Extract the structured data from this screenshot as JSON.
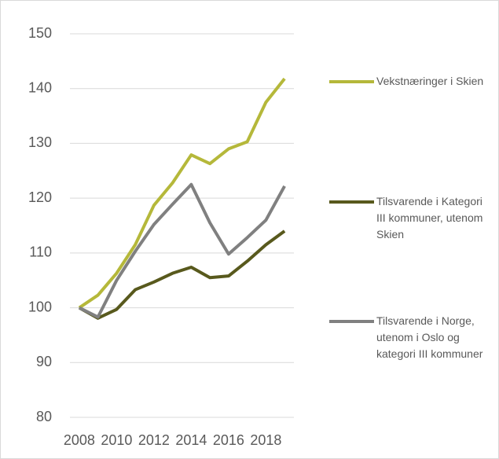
{
  "chart_data": {
    "type": "line",
    "x": [
      2008,
      2009,
      2010,
      2011,
      2012,
      2013,
      2014,
      2015,
      2016,
      2017,
      2018,
      2019
    ],
    "xlim": [
      2007.5,
      2019.5
    ],
    "xticks": [
      2008,
      2010,
      2012,
      2014,
      2016,
      2018
    ],
    "ylim": [
      80,
      150
    ],
    "yticks": [
      80,
      90,
      100,
      110,
      120,
      130,
      140,
      150
    ],
    "grid": true,
    "legend": "right",
    "series": [
      {
        "name": "Vekstnæringer i Skien",
        "color": "#b5b83a",
        "values": [
          100,
          102.3,
          106.3,
          111.5,
          118.7,
          122.8,
          127.9,
          126.3,
          129,
          130.3,
          137.5,
          141.8
        ]
      },
      {
        "name": "Tilsvarende i Kategori III kommuner, utenom Skien",
        "color": "#58591d",
        "values": [
          100,
          98.1,
          99.7,
          103.3,
          104.7,
          106.3,
          107.4,
          105.5,
          105.8,
          108.5,
          111.5,
          114
        ]
      },
      {
        "name": "Tilsvarende i Norge, utenom i Oslo og kategori III kommuner",
        "color": "#808080",
        "values": [
          100,
          98.3,
          105,
          110.3,
          115.2,
          118.9,
          122.5,
          115.5,
          109.8,
          112.8,
          116,
          122.2
        ]
      }
    ]
  }
}
